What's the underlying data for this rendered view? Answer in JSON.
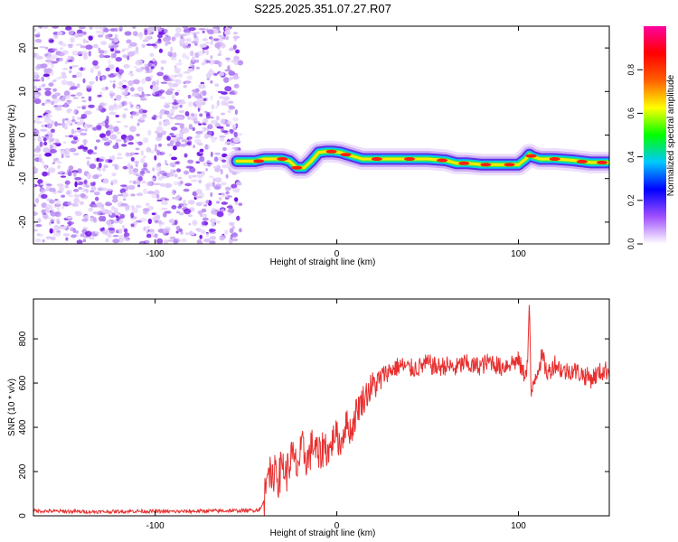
{
  "page": {
    "title": "S225.2025.351.07.27.R07"
  },
  "chart_data": [
    {
      "type": "heatmap",
      "title": "S225.2025.351.07.27.R07",
      "xlabel": "Height of straight line (km)",
      "ylabel": "Frequency (Hz)",
      "xlim": [
        -167,
        150
      ],
      "ylim": [
        -25,
        25
      ],
      "x_ticks": [
        -100,
        0,
        100
      ],
      "y_ticks": [
        -20,
        -10,
        0,
        10,
        20
      ],
      "x_tick_labels": [
        "-100",
        "0",
        "100"
      ],
      "y_tick_labels": [
        "-20",
        "-10",
        "0",
        "10",
        "20"
      ],
      "noise_region_x": [
        -167,
        -53
      ],
      "signal_region_x": [
        -53,
        150
      ],
      "ridge": {
        "x": [
          -55,
          -50,
          -45,
          -40,
          -35,
          -30,
          -26,
          -22,
          -18,
          -14,
          -10,
          -6,
          -2,
          2,
          6,
          10,
          14,
          20,
          30,
          40,
          50,
          60,
          66,
          72,
          80,
          90,
          100,
          104,
          106,
          108,
          112,
          120,
          130,
          140,
          150
        ],
        "y": [
          -6,
          -6,
          -6,
          -5.5,
          -5.5,
          -5.5,
          -6,
          -7.5,
          -7.5,
          -6,
          -4,
          -3.8,
          -3.8,
          -4,
          -4.5,
          -5,
          -5.5,
          -5.5,
          -5.5,
          -5.5,
          -5.5,
          -5.8,
          -6.5,
          -6.5,
          -6.8,
          -6.8,
          -6.8,
          -5.5,
          -4.5,
          -5,
          -5.5,
          -5.5,
          -5.8,
          -6.3,
          -6.3
        ]
      },
      "colorbar": {
        "label": "Normalized spectral amplitude",
        "range": [
          0,
          1
        ],
        "ticks": [
          0.0,
          0.2,
          0.4,
          0.6,
          0.8
        ],
        "tick_labels": [
          "0.0",
          "0.2",
          "0.4",
          "0.6",
          "0.8"
        ],
        "colors": [
          "#ffffff",
          "#a050ff",
          "#0000ff",
          "#00c8ff",
          "#00ff00",
          "#ffff00",
          "#ff6000",
          "#ff0000",
          "#ff00a0"
        ]
      }
    },
    {
      "type": "line",
      "xlabel": "Height of straight line (km)",
      "ylabel": "SNR (10 * v/v)",
      "xlim": [
        -167,
        150
      ],
      "ylim": [
        0,
        980
      ],
      "x_ticks": [
        -100,
        0,
        100
      ],
      "y_ticks": [
        0,
        200,
        400,
        600,
        800
      ],
      "x_tick_labels": [
        "-100",
        "0",
        "100"
      ],
      "y_tick_labels": [
        "0",
        "200",
        "400",
        "600",
        "800"
      ],
      "series": [
        {
          "name": "SNR",
          "color": "#e83030",
          "x": [
            -167,
            -150,
            -130,
            -110,
            -90,
            -70,
            -55,
            -45,
            -42,
            -40,
            -39,
            -38,
            -36,
            -34,
            -32,
            -30,
            -28,
            -25,
            -22,
            -19,
            -16,
            -13,
            -10,
            -7,
            -4,
            -1,
            2,
            5,
            8,
            11,
            14,
            17,
            20,
            23,
            26,
            30,
            35,
            40,
            45,
            50,
            55,
            60,
            65,
            70,
            75,
            80,
            85,
            90,
            95,
            100,
            103,
            105,
            106,
            107,
            108,
            110,
            113,
            116,
            120,
            125,
            130,
            135,
            140,
            145,
            150
          ],
          "values": [
            22,
            20,
            18,
            21,
            19,
            22,
            23,
            25,
            30,
            70,
            150,
            280,
            120,
            240,
            160,
            250,
            180,
            270,
            220,
            300,
            250,
            330,
            260,
            320,
            290,
            380,
            320,
            420,
            380,
            480,
            520,
            560,
            590,
            600,
            640,
            660,
            680,
            665,
            670,
            690,
            670,
            680,
            665,
            690,
            675,
            680,
            700,
            670,
            690,
            700,
            640,
            680,
            980,
            520,
            600,
            650,
            720,
            640,
            690,
            650,
            660,
            640,
            620,
            650,
            660
          ]
        }
      ]
    }
  ]
}
